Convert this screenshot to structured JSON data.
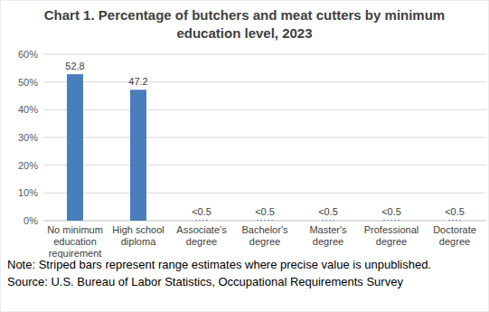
{
  "chart_data": {
    "type": "bar",
    "title": "Chart 1. Percentage of butchers and meat cutters by minimum education level, 2023",
    "categories": [
      "No minimum education requirement",
      "High school diploma",
      "Associate's degree",
      "Bachelor's degree",
      "Master's degree",
      "Professional degree",
      "Doctorate degree"
    ],
    "values": [
      52.8,
      47.2,
      0.25,
      0.25,
      0.25,
      0.25,
      0.25
    ],
    "value_labels": [
      "52.8",
      "47.2",
      "<0.5",
      "<0.5",
      "<0.5",
      "<0.5",
      "<0.5"
    ],
    "color": "#4a7ebb",
    "ylim": [
      0,
      60
    ],
    "yticks": [
      {
        "value": 0,
        "label": "0%"
      },
      {
        "value": 10,
        "label": "10%"
      },
      {
        "value": 20,
        "label": "20%"
      },
      {
        "value": 30,
        "label": "30%"
      },
      {
        "value": 40,
        "label": "40%"
      },
      {
        "value": 50,
        "label": "50%"
      },
      {
        "value": 60,
        "label": "60%"
      }
    ],
    "grid": true,
    "data_labels": true,
    "annotations": [
      "Note: Striped bars represent range estimates where precise value is unpublished.",
      "Source: U.S. Bureau of Labor Statistics, Occupational Requirements Survey"
    ]
  }
}
